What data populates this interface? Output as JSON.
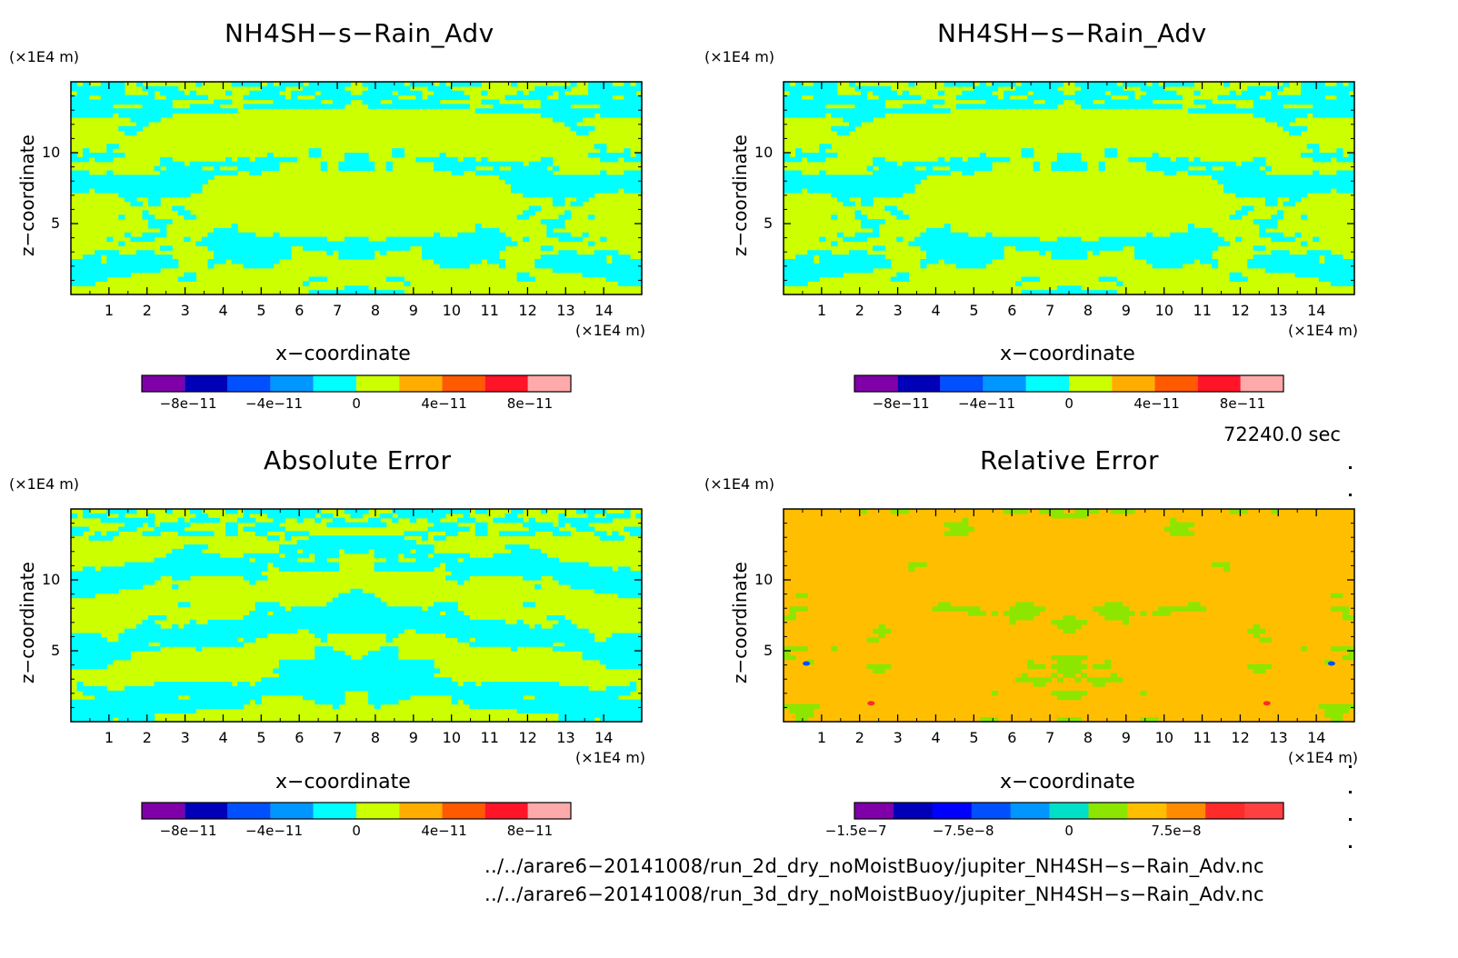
{
  "chart_data": [
    {
      "type": "heatmap",
      "title": "NH4SH−s−Rain_Adv",
      "xlabel": "x−coordinate",
      "ylabel": "z−coordinate",
      "x_unit": "(×1E4 m)",
      "y_unit": "(×1E4 m)",
      "xticks": [
        "1",
        "2",
        "3",
        "4",
        "5",
        "6",
        "7",
        "8",
        "9",
        "10",
        "11",
        "12",
        "13",
        "14"
      ],
      "yticks": [
        "5",
        "10"
      ],
      "xlim": [
        0,
        15
      ],
      "ylim": [
        0,
        15
      ],
      "colorbar": {
        "levels": [
          -1e-10,
          -8e-11,
          -6e-11,
          -4e-11,
          -2e-11,
          0,
          2e-11,
          4e-11,
          6e-11,
          8e-11,
          1e-10
        ],
        "colors": [
          "#7f00a8",
          "#0000b8",
          "#0050ff",
          "#0096ff",
          "#00ffff",
          "#ccff00",
          "#ffae00",
          "#ff5a00",
          "#ff1428",
          "#ffaaaa"
        ],
        "tick_labels": [
          "−8e−11",
          "−4e−11",
          "0",
          "4e−11",
          "8e−11"
        ]
      },
      "dominant_colors": [
        "#ccff00",
        "#00ffff"
      ],
      "pattern": "A"
    },
    {
      "type": "heatmap",
      "title": "NH4SH−s−Rain_Adv",
      "xlabel": "x−coordinate",
      "ylabel": "z−coordinate",
      "x_unit": "(×1E4 m)",
      "y_unit": "(×1E4 m)",
      "xticks": [
        "1",
        "2",
        "3",
        "4",
        "5",
        "6",
        "7",
        "8",
        "9",
        "10",
        "11",
        "12",
        "13",
        "14"
      ],
      "yticks": [
        "5",
        "10"
      ],
      "xlim": [
        0,
        15
      ],
      "ylim": [
        0,
        15
      ],
      "colorbar": {
        "levels": [
          -1e-10,
          -8e-11,
          -6e-11,
          -4e-11,
          -2e-11,
          0,
          2e-11,
          4e-11,
          6e-11,
          8e-11,
          1e-10
        ],
        "colors": [
          "#7f00a8",
          "#0000b8",
          "#0050ff",
          "#0096ff",
          "#00ffff",
          "#ccff00",
          "#ffae00",
          "#ff5a00",
          "#ff1428",
          "#ffaaaa"
        ],
        "tick_labels": [
          "−8e−11",
          "−4e−11",
          "0",
          "4e−11",
          "8e−11"
        ]
      },
      "dominant_colors": [
        "#ccff00",
        "#00ffff"
      ],
      "pattern": "A"
    },
    {
      "type": "heatmap",
      "title": "Absolute Error",
      "xlabel": "x−coordinate",
      "ylabel": "z−coordinate",
      "x_unit": "(×1E4 m)",
      "y_unit": "(×1E4 m)",
      "xticks": [
        "1",
        "2",
        "3",
        "4",
        "5",
        "6",
        "7",
        "8",
        "9",
        "10",
        "11",
        "12",
        "13",
        "14"
      ],
      "yticks": [
        "5",
        "10"
      ],
      "xlim": [
        0,
        15
      ],
      "ylim": [
        0,
        15
      ],
      "colorbar": {
        "levels": [
          -1e-10,
          -8e-11,
          -6e-11,
          -4e-11,
          -2e-11,
          0,
          2e-11,
          4e-11,
          6e-11,
          8e-11,
          1e-10
        ],
        "colors": [
          "#7f00a8",
          "#0000b8",
          "#0050ff",
          "#0096ff",
          "#00ffff",
          "#ccff00",
          "#ffae00",
          "#ff5a00",
          "#ff1428",
          "#ffaaaa"
        ],
        "tick_labels": [
          "−8e−11",
          "−4e−11",
          "0",
          "4e−11",
          "8e−11"
        ]
      },
      "dominant_colors": [
        "#ccff00",
        "#00ffff"
      ],
      "pattern": "B"
    },
    {
      "type": "heatmap",
      "title": "Relative Error",
      "xlabel": "x−coordinate",
      "ylabel": "z−coordinate",
      "x_unit": "(×1E4 m)",
      "y_unit": "(×1E4 m)",
      "xticks": [
        "1",
        "2",
        "3",
        "4",
        "5",
        "6",
        "7",
        "8",
        "9",
        "10",
        "11",
        "12",
        "13",
        "14"
      ],
      "yticks": [
        "5",
        "10"
      ],
      "xlim": [
        0,
        15
      ],
      "ylim": [
        0,
        15
      ],
      "colorbar": {
        "levels": [
          -1.5e-07,
          -1.35e-07,
          -1.2e-07,
          -1.05e-07,
          -9e-08,
          -7.5e-08,
          -6e-08,
          -4.5e-08,
          -3e-08,
          -1.5e-08,
          0,
          1.5e-08,
          3e-08,
          4.5e-08,
          6e-08,
          7.5e-08,
          9e-08,
          1.05e-07,
          1.2e-07,
          1.35e-07,
          1.5e-07
        ],
        "colors": [
          "#7f00a8",
          "#0000b8",
          "#0000ff",
          "#0050ff",
          "#0096ff",
          "#00e0c8",
          "#8ce600",
          "#ffbf00",
          "#ff8c00",
          "#ff2a2a",
          "#ff4040"
        ],
        "tick_labels": [
          "−1.5e−7",
          "−7.5e−8",
          "0",
          "7.5e−8"
        ]
      },
      "dominant_colors": [
        "#ffbf00",
        "#8ce600"
      ],
      "pattern": "C"
    }
  ],
  "timestamp": "72240.0 sec",
  "footer": {
    "line1": "../../arare6−20141008/run_2d_dry_noMoistBuoy/jupiter_NH4SH−s−Rain_Adv.nc",
    "line2": "../../arare6−20141008/run_3d_dry_noMoistBuoy/jupiter_NH4SH−s−Rain_Adv.nc"
  }
}
